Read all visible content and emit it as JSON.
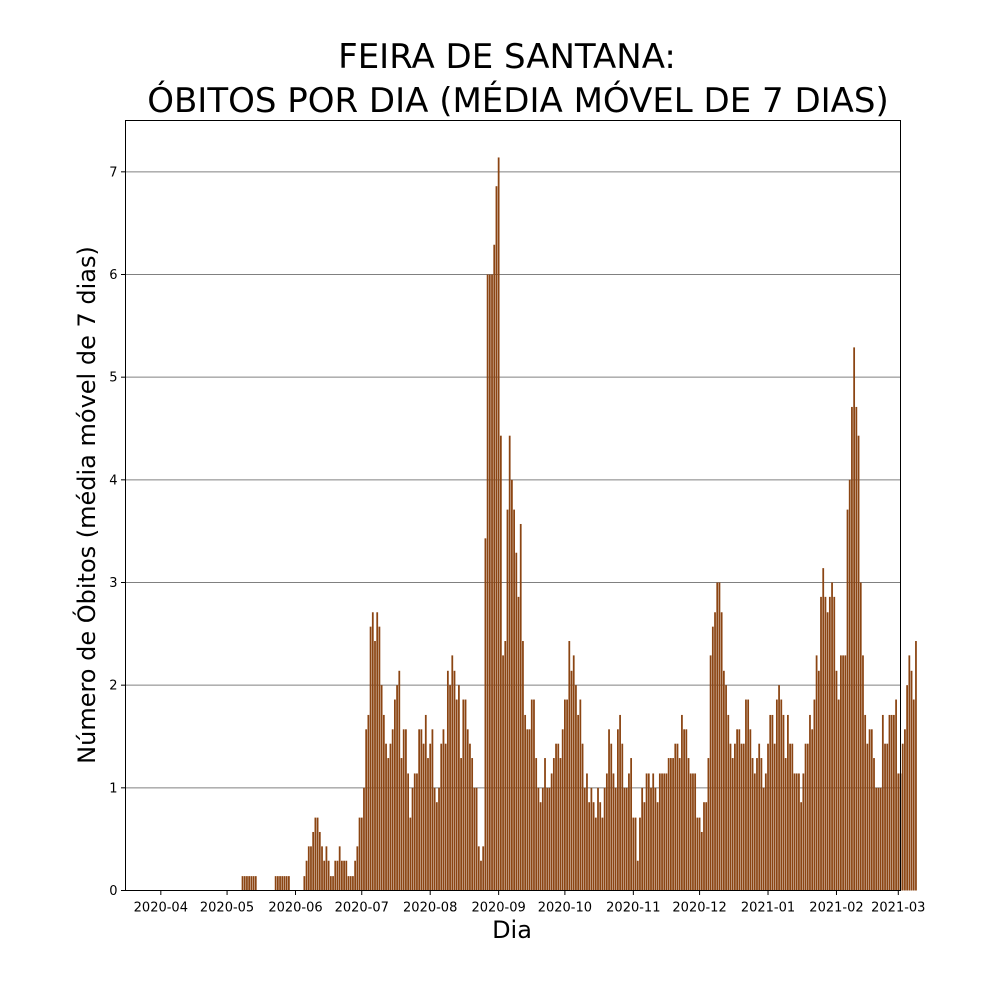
{
  "chart_data": {
    "type": "bar",
    "title": [
      "FEIRA DE SANTANA:",
      "ÓBITOS POR DIA (MÉDIA MÓVEL DE 7 DIAS)"
    ],
    "xlabel": "Dia",
    "ylabel": "Número de Óbitos (média móvel de 7 dias)",
    "bar_color": "#8B4513",
    "grid_color": "#808080",
    "grid": "horizontal",
    "ylim": [
      0,
      7.5
    ],
    "yticks": [
      0,
      1,
      2,
      3,
      4,
      5,
      6,
      7
    ],
    "xlim": [
      "2020-03-16",
      "2021-03-02"
    ],
    "xticks": [
      "2020-04-01",
      "2020-05-01",
      "2020-06-01",
      "2020-07-01",
      "2020-08-01",
      "2020-09-01",
      "2020-10-01",
      "2020-11-01",
      "2020-12-01",
      "2021-01-01",
      "2021-02-01",
      "2021-03-01"
    ],
    "xtick_labels": [
      "2020-04",
      "2020-05",
      "2020-06",
      "2020-07",
      "2020-08",
      "2020-09",
      "2020-10",
      "2020-11",
      "2020-12",
      "2021-01",
      "2021-02",
      "2021-03"
    ],
    "x_start": "2020-03-29",
    "values": [
      0,
      0,
      0,
      0,
      0,
      0,
      0,
      0,
      0,
      0,
      0,
      0,
      0,
      0,
      0,
      0,
      0,
      0,
      0,
      0,
      0,
      0,
      0,
      0,
      0,
      0,
      0,
      0,
      0,
      0,
      0,
      0,
      0,
      0,
      0,
      0,
      0,
      0,
      0,
      0,
      0.14,
      0.14,
      0.14,
      0.14,
      0.14,
      0.14,
      0.14,
      0,
      0,
      0,
      0,
      0,
      0,
      0,
      0,
      0.14,
      0.14,
      0.14,
      0.14,
      0.14,
      0.14,
      0.14,
      0,
      0,
      0,
      0,
      0,
      0,
      0.14,
      0.29,
      0.43,
      0.43,
      0.57,
      0.71,
      0.71,
      0.57,
      0.43,
      0.29,
      0.43,
      0.29,
      0.14,
      0.14,
      0.29,
      0.29,
      0.43,
      0.29,
      0.29,
      0.29,
      0.14,
      0.14,
      0.14,
      0.29,
      0.43,
      0.71,
      0.71,
      1.0,
      1.57,
      1.71,
      2.57,
      2.71,
      2.43,
      2.71,
      2.57,
      2.0,
      1.71,
      1.43,
      1.29,
      1.43,
      1.57,
      1.86,
      2.0,
      2.14,
      1.29,
      1.57,
      1.57,
      1.14,
      0.71,
      1.0,
      1.14,
      1.14,
      1.57,
      1.57,
      1.43,
      1.71,
      1.29,
      1.43,
      1.57,
      1.0,
      0.86,
      1.0,
      1.43,
      1.57,
      1.43,
      2.14,
      2.0,
      2.29,
      2.14,
      1.86,
      2.0,
      1.29,
      1.86,
      1.86,
      1.57,
      1.43,
      1.29,
      1.0,
      1.0,
      0.43,
      0.29,
      0.43,
      3.43,
      6.0,
      6.0,
      6.0,
      6.29,
      6.86,
      7.14,
      4.43,
      2.29,
      2.43,
      3.71,
      4.43,
      4.0,
      3.71,
      3.29,
      2.86,
      3.57,
      2.43,
      1.71,
      1.57,
      1.57,
      1.86,
      1.86,
      1.29,
      1.0,
      0.86,
      1.0,
      1.29,
      1.0,
      1.0,
      1.14,
      1.29,
      1.43,
      1.43,
      1.29,
      1.57,
      1.86,
      1.86,
      2.43,
      2.14,
      2.29,
      2.0,
      1.71,
      1.86,
      1.43,
      1.0,
      1.14,
      0.86,
      1.0,
      0.86,
      0.71,
      1.0,
      0.86,
      0.71,
      1.0,
      1.14,
      1.57,
      1.43,
      1.14,
      1.0,
      1.57,
      1.71,
      1.43,
      1.0,
      1.0,
      1.14,
      1.29,
      0.71,
      0.71,
      0.29,
      0.71,
      1.0,
      0.86,
      1.14,
      1.14,
      1.0,
      1.14,
      1.0,
      0.86,
      1.14,
      1.14,
      1.14,
      1.14,
      1.29,
      1.29,
      1.29,
      1.43,
      1.43,
      1.29,
      1.71,
      1.57,
      1.57,
      1.29,
      1.14,
      1.14,
      1.14,
      0.71,
      0.71,
      0.57,
      0.86,
      0.86,
      1.29,
      2.29,
      2.57,
      2.71,
      3.0,
      3.0,
      2.71,
      2.14,
      2.0,
      1.71,
      1.43,
      1.29,
      1.43,
      1.57,
      1.57,
      1.43,
      1.43,
      1.86,
      1.86,
      1.57,
      1.29,
      1.14,
      1.29,
      1.43,
      1.29,
      1.0,
      1.14,
      1.43,
      1.71,
      1.71,
      1.43,
      1.86,
      2.0,
      1.86,
      1.71,
      1.29,
      1.71,
      1.43,
      1.43,
      1.14,
      1.14,
      1.14,
      0.86,
      1.14,
      1.43,
      1.43,
      1.71,
      1.57,
      1.86,
      2.29,
      2.14,
      2.86,
      3.14,
      2.86,
      2.71,
      2.86,
      3.0,
      2.86,
      2.14,
      1.86,
      2.29,
      2.29,
      2.29,
      3.71,
      4.0,
      4.71,
      5.29,
      4.71,
      4.43,
      3.0,
      2.29,
      1.71,
      1.43,
      1.57,
      1.57,
      1.29,
      1.0,
      1.0,
      1.0,
      1.71,
      1.43,
      1.43,
      1.71,
      1.71,
      1.71,
      1.86,
      1.14,
      1.14,
      1.43,
      1.57,
      2.0,
      2.29,
      2.14,
      1.86,
      2.43
    ]
  }
}
